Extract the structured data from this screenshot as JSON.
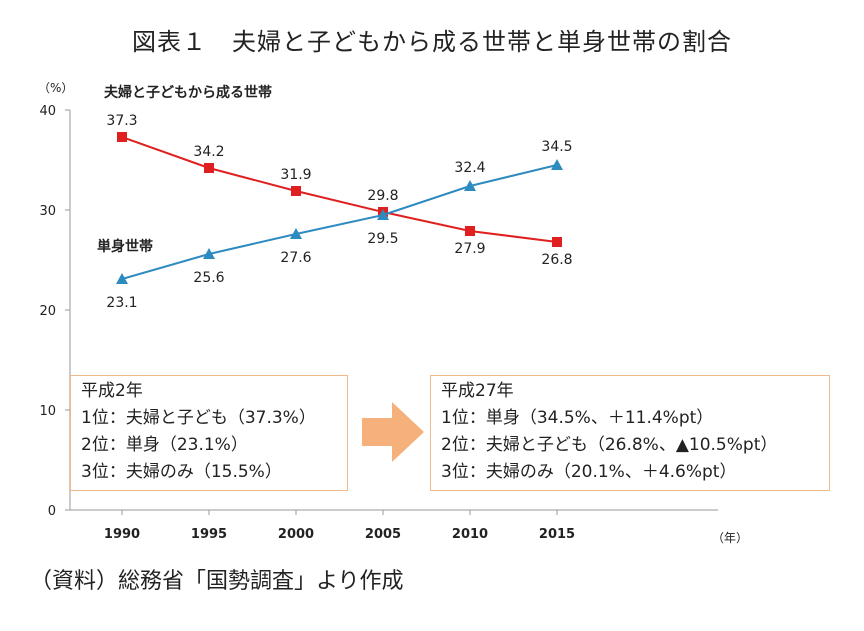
{
  "title": "図表１　夫婦と子どもから成る世帯と単身世帯の割合",
  "source": "（資料）総務省「国勢調査」より作成",
  "chart_data": {
    "type": "line",
    "x": [
      "1990",
      "1995",
      "2000",
      "2005",
      "2010",
      "2015"
    ],
    "ylim": [
      0,
      40
    ],
    "yticks": [
      "0",
      "10",
      "20",
      "30",
      "40"
    ],
    "ylabel": "（%）",
    "xlabel": "（年）",
    "grid": false,
    "series": [
      {
        "name": "夫婦と子どもから成る世帯",
        "color": "#e02020",
        "marker": "square",
        "values": [
          37.3,
          34.2,
          31.9,
          29.8,
          27.9,
          26.8
        ],
        "labels": [
          "37.3",
          "34.2",
          "31.9",
          "29.8",
          "27.9",
          "26.8"
        ]
      },
      {
        "name": "単身世帯",
        "color": "#2e8bc0",
        "marker": "triangle",
        "values": [
          23.1,
          25.6,
          27.6,
          29.5,
          32.4,
          34.5
        ],
        "labels": [
          "23.1",
          "25.6",
          "27.6",
          "29.5",
          "32.4",
          "34.5"
        ]
      }
    ]
  },
  "box_left": {
    "heading": "平成2年",
    "lines": [
      "1位：夫婦と子ども（37.3%）",
      "2位：単身（23.1%）",
      "3位：夫婦のみ（15.5%）"
    ]
  },
  "box_right": {
    "heading": "平成27年",
    "lines": [
      "1位：単身（34.5%、＋11.4%pt）",
      "2位：夫婦と子ども（26.8%、▲10.5%pt）",
      "3位：夫婦のみ（20.1%、＋4.6%pt）"
    ]
  },
  "arrow_color": "#f5b07c",
  "box_border_color": "#f0b98a"
}
